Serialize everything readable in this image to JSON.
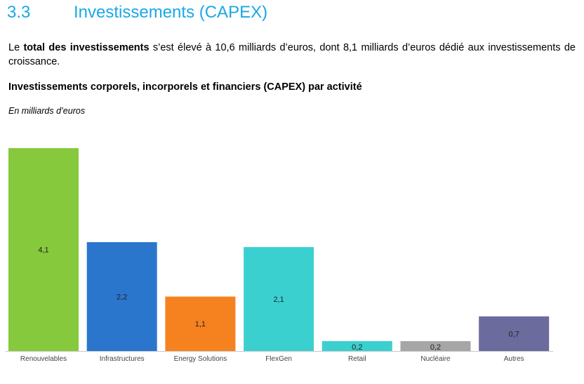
{
  "section": {
    "number": "3.3",
    "title": "Investissements (CAPEX)"
  },
  "paragraph": {
    "prefix": "Le ",
    "bold": "total des investissements",
    "rest": " s’est élevé à 10,6 milliards d’euros, dont 8,1 milliards d’euros dédié aux investissements de croissance."
  },
  "chart_heading": "Investissements corporels, incorporels et financiers (CAPEX) par activité",
  "unit_label": "En milliards d’euros",
  "colors": {
    "heading": "#1aa7e8",
    "axis": "#c8c8c8"
  },
  "chart_data": {
    "type": "bar",
    "title": "Investissements corporels, incorporels et financiers (CAPEX) par activité",
    "ylabel": "En milliards d’euros",
    "ylim": [
      0,
      4.1
    ],
    "grid": false,
    "legend": "none",
    "categories": [
      "Renouvelables",
      "Infrastructures",
      "Energy Solutions",
      "FlexGen",
      "Retail",
      "Nucléaire",
      "Autres"
    ],
    "values": [
      4.1,
      2.2,
      1.1,
      2.1,
      0.2,
      0.2,
      0.7
    ],
    "value_labels": [
      "4,1",
      "2,2",
      "1,1",
      "2,1",
      "0,2",
      "0,2",
      "0,7"
    ],
    "colors": [
      "#86c93c",
      "#2a76cc",
      "#f5821f",
      "#3bd0d0",
      "#3bd0d0",
      "#a6a6a6",
      "#6b6b9e"
    ]
  }
}
